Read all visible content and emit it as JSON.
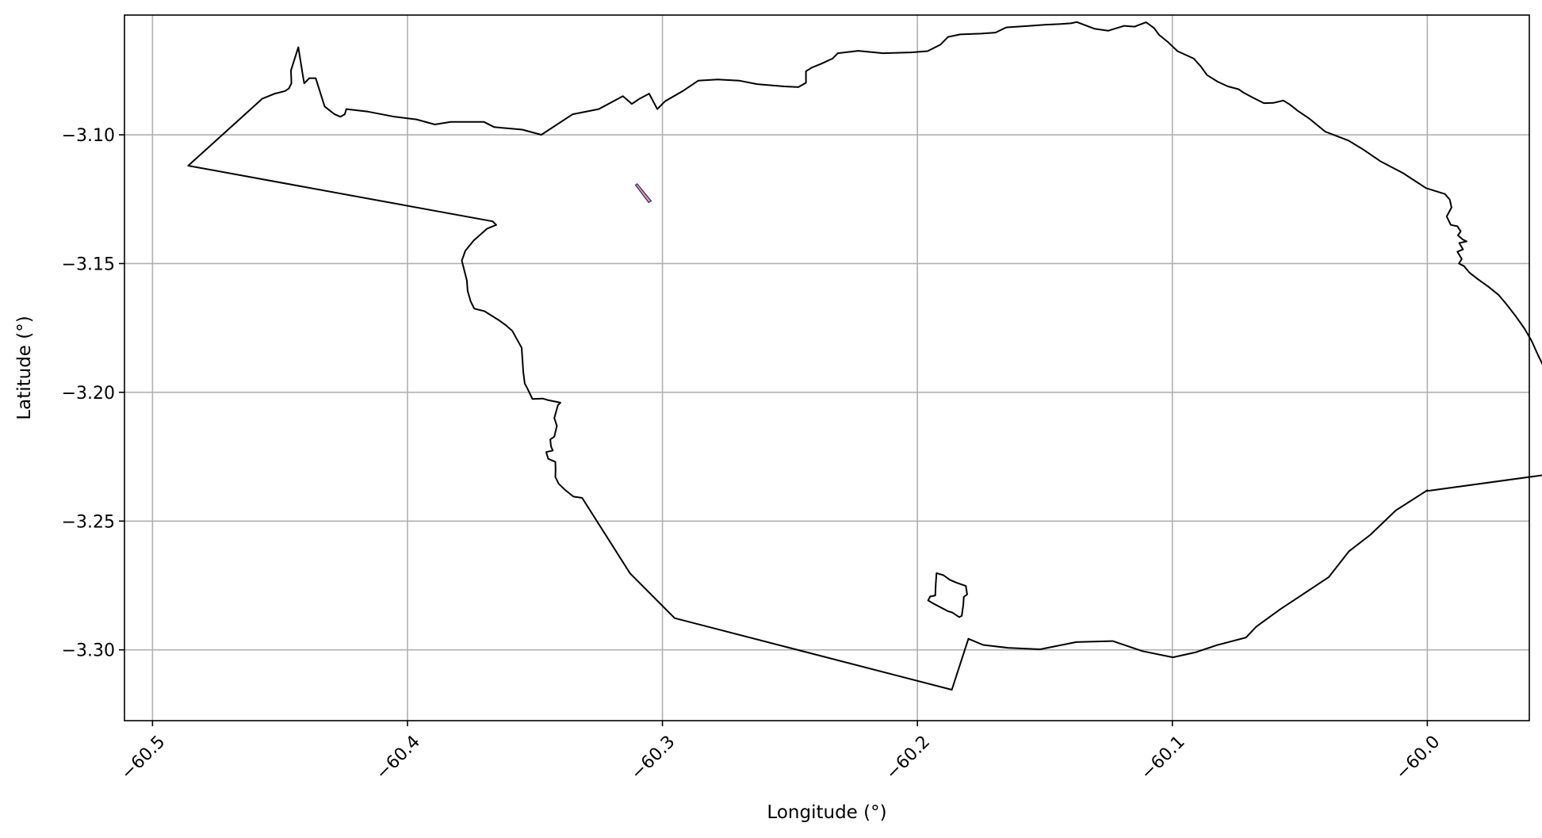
{
  "chart_data": {
    "type": "map",
    "title": "",
    "xlabel": "Longitude (°)",
    "ylabel": "Latitude (°)",
    "xlim": [
      -60.511,
      -59.96
    ],
    "ylim": [
      -3.3275,
      -3.0535
    ],
    "grid": true,
    "x_ticks": [
      {
        "value": -60.5,
        "label": "−60.5"
      },
      {
        "value": -60.4,
        "label": "−60.4"
      },
      {
        "value": -60.3,
        "label": "−60.3"
      },
      {
        "value": -60.2,
        "label": "−60.2"
      },
      {
        "value": -60.1,
        "label": "−60.1"
      },
      {
        "value": -60.0,
        "label": "−60.0"
      }
    ],
    "y_ticks": [
      {
        "value": -3.1,
        "label": "−3.10"
      },
      {
        "value": -3.15,
        "label": "−3.15"
      },
      {
        "value": -3.2,
        "label": "−3.20"
      },
      {
        "value": -3.25,
        "label": "−3.25"
      },
      {
        "value": -3.3,
        "label": "−3.30"
      }
    ],
    "colors": {
      "boundary": "#000000",
      "highlight_fill": "#f0a030",
      "highlight_edge": "#2020d0",
      "grid": "#b0b0b0"
    },
    "outline": [
      [
        -60.486,
        -3.112
      ],
      [
        -60.457,
        -3.086
      ],
      [
        -60.452,
        -3.084
      ],
      [
        -60.448,
        -3.083
      ],
      [
        -60.4465,
        -3.082
      ],
      [
        -60.4455,
        -3.08
      ],
      [
        -60.4457,
        -3.075
      ],
      [
        -60.4428,
        -3.066
      ],
      [
        -60.4412,
        -3.076
      ],
      [
        -60.4405,
        -3.08
      ],
      [
        -60.4385,
        -3.078
      ],
      [
        -60.436,
        -3.078
      ],
      [
        -60.4325,
        -3.089
      ],
      [
        -60.4286,
        -3.092
      ],
      [
        -60.4263,
        -3.093
      ],
      [
        -60.4246,
        -3.092
      ],
      [
        -60.424,
        -3.09
      ],
      [
        -60.4155,
        -3.091
      ],
      [
        -60.405,
        -3.093
      ],
      [
        -60.3965,
        -3.094
      ],
      [
        -60.3893,
        -3.096
      ],
      [
        -60.383,
        -3.095
      ],
      [
        -60.37,
        -3.095
      ],
      [
        -60.366,
        -3.097
      ],
      [
        -60.355,
        -3.098
      ],
      [
        -60.3475,
        -3.1
      ],
      [
        -60.3352,
        -3.092
      ],
      [
        -60.325,
        -3.09
      ],
      [
        -60.3155,
        -3.085
      ],
      [
        -60.312,
        -3.088
      ],
      [
        -60.309,
        -3.086
      ],
      [
        -60.3052,
        -3.084
      ],
      [
        -60.302,
        -3.09
      ],
      [
        -60.299,
        -3.087
      ],
      [
        -60.292,
        -3.083
      ],
      [
        -60.286,
        -3.079
      ],
      [
        -60.2784,
        -3.0785
      ],
      [
        -60.2697,
        -3.079
      ],
      [
        -60.2629,
        -3.0803
      ],
      [
        -60.2522,
        -3.0812
      ],
      [
        -60.2467,
        -3.0815
      ],
      [
        -60.2437,
        -3.0798
      ],
      [
        -60.2437,
        -3.0753
      ],
      [
        -60.2412,
        -3.0738
      ],
      [
        -60.2379,
        -3.0725
      ],
      [
        -60.2333,
        -3.0704
      ],
      [
        -60.2312,
        -3.0683
      ],
      [
        -60.2232,
        -3.0674
      ],
      [
        -60.2135,
        -3.0683
      ],
      [
        -60.2025,
        -3.068
      ],
      [
        -60.196,
        -3.0675
      ],
      [
        -60.191,
        -3.065
      ],
      [
        -60.188,
        -3.062
      ],
      [
        -60.1832,
        -3.061
      ],
      [
        -60.175,
        -3.0607
      ],
      [
        -60.1694,
        -3.0603
      ],
      [
        -60.1652,
        -3.0583
      ],
      [
        -60.156,
        -3.0577
      ],
      [
        -60.1502,
        -3.0573
      ],
      [
        -60.1443,
        -3.057
      ],
      [
        -60.1398,
        -3.0567
      ],
      [
        -60.1375,
        -3.0562
      ],
      [
        -60.1306,
        -3.0588
      ],
      [
        -60.1252,
        -3.0596
      ],
      [
        -60.1189,
        -3.0577
      ],
      [
        -60.1148,
        -3.058
      ],
      [
        -60.1103,
        -3.0563
      ],
      [
        -60.1071,
        -3.0586
      ],
      [
        -60.1052,
        -3.0612
      ],
      [
        -60.1017,
        -3.064
      ],
      [
        -60.098,
        -3.0675
      ],
      [
        -60.0916,
        -3.0704
      ],
      [
        -60.0888,
        -3.0735
      ],
      [
        -60.0864,
        -3.0768
      ],
      [
        -60.0822,
        -3.0794
      ],
      [
        -60.0782,
        -3.0812
      ],
      [
        -60.0741,
        -3.0823
      ],
      [
        -60.0718,
        -3.0838
      ],
      [
        -60.068,
        -3.0858
      ],
      [
        -60.0641,
        -3.0877
      ],
      [
        -60.0604,
        -3.0876
      ],
      [
        -60.0565,
        -3.0867
      ],
      [
        -60.054,
        -3.0882
      ],
      [
        -60.0508,
        -3.0907
      ],
      [
        -60.0464,
        -3.0936
      ],
      [
        -60.04,
        -3.0988
      ],
      [
        -60.031,
        -3.1022
      ],
      [
        -60.025,
        -3.1058
      ],
      [
        -60.0182,
        -3.1104
      ],
      [
        -60.0095,
        -3.1149
      ],
      [
        -60.0005,
        -3.1207
      ],
      [
        -59.9931,
        -3.123
      ],
      [
        -59.9912,
        -3.1252
      ],
      [
        -59.9905,
        -3.1282
      ],
      [
        -59.9924,
        -3.1317
      ],
      [
        -59.9908,
        -3.135
      ],
      [
        -59.9882,
        -3.1355
      ],
      [
        -59.9869,
        -3.1375
      ],
      [
        -59.988,
        -3.139
      ],
      [
        -59.9862,
        -3.1406
      ],
      [
        -59.9846,
        -3.1414
      ],
      [
        -59.9875,
        -3.142
      ],
      [
        -59.986,
        -3.1445
      ],
      [
        -59.9882,
        -3.1454
      ],
      [
        -59.9865,
        -3.1482
      ],
      [
        -59.9876,
        -3.15
      ],
      [
        -59.9856,
        -3.151
      ],
      [
        -59.9835,
        -3.1535
      ],
      [
        -59.98,
        -3.1562
      ],
      [
        -59.976,
        -3.159
      ],
      [
        -59.972,
        -3.1622
      ],
      [
        -59.9688,
        -3.166
      ],
      [
        -59.9655,
        -3.1702
      ],
      [
        -59.962,
        -3.1751
      ],
      [
        -59.9591,
        -3.18
      ],
      [
        -59.9567,
        -3.1853
      ],
      [
        -59.9542,
        -3.1904
      ],
      [
        -59.9521,
        -3.1953
      ],
      [
        -59.9503,
        -3.2003
      ],
      [
        -59.949,
        -3.2054
      ],
      [
        -59.948,
        -3.2105
      ],
      [
        -59.9472,
        -3.2155
      ],
      [
        -59.9467,
        -3.2207
      ],
      [
        -59.9464,
        -3.2258
      ],
      [
        -59.9463,
        -3.231
      ],
      [
        -60.0,
        -3.2383
      ],
      [
        -60.0,
        -3.238
      ],
      [
        -60.0124,
        -3.2459
      ],
      [
        -60.0223,
        -3.2553
      ],
      [
        -60.0307,
        -3.2617
      ],
      [
        -60.0386,
        -3.2717
      ],
      [
        -60.0491,
        -3.2786
      ],
      [
        -60.0578,
        -3.2843
      ],
      [
        -60.0671,
        -3.291
      ],
      [
        -60.0711,
        -3.2952
      ],
      [
        -60.0826,
        -3.2982
      ],
      [
        -60.0907,
        -3.3009
      ],
      [
        -60.0998,
        -3.3029
      ],
      [
        -60.1117,
        -3.3005
      ],
      [
        -60.1234,
        -3.2966
      ],
      [
        -60.1377,
        -3.297
      ],
      [
        -60.1519,
        -3.2998
      ],
      [
        -60.1645,
        -3.2992
      ],
      [
        -60.1742,
        -3.2981
      ],
      [
        -60.18,
        -3.2957
      ],
      [
        -60.1865,
        -3.3155
      ],
      [
        -60.2952,
        -3.2877
      ],
      [
        -60.3127,
        -3.2703
      ],
      [
        -60.3315,
        -3.241
      ],
      [
        -60.3349,
        -3.2405
      ],
      [
        -60.3383,
        -3.2378
      ],
      [
        -60.3407,
        -3.2355
      ],
      [
        -60.342,
        -3.2329
      ],
      [
        -60.3419,
        -3.23
      ],
      [
        -60.342,
        -3.227
      ],
      [
        -60.3448,
        -3.2258
      ],
      [
        -60.3456,
        -3.2232
      ],
      [
        -60.343,
        -3.2226
      ],
      [
        -60.3437,
        -3.221
      ],
      [
        -60.344,
        -3.2183
      ],
      [
        -60.3424,
        -3.2172
      ],
      [
        -60.3414,
        -3.213
      ],
      [
        -60.3424,
        -3.21
      ],
      [
        -60.341,
        -3.205
      ],
      [
        -60.34,
        -3.204
      ],
      [
        -60.345,
        -3.203
      ],
      [
        -60.347,
        -3.2024
      ],
      [
        -60.351,
        -3.2026
      ],
      [
        -60.353,
        -3.1984
      ],
      [
        -60.354,
        -3.1966
      ],
      [
        -60.3546,
        -3.192
      ],
      [
        -60.3552,
        -3.1827
      ],
      [
        -60.3589,
        -3.1761
      ],
      [
        -60.3616,
        -3.1738
      ],
      [
        -60.3643,
        -3.1719
      ],
      [
        -60.3698,
        -3.1685
      ],
      [
        -60.3738,
        -3.1675
      ],
      [
        -60.3752,
        -3.1647
      ],
      [
        -60.3764,
        -3.1607
      ],
      [
        -60.3767,
        -3.1566
      ],
      [
        -60.3787,
        -3.1488
      ],
      [
        -60.3773,
        -3.145
      ],
      [
        -60.374,
        -3.141
      ],
      [
        -60.3687,
        -3.1364
      ],
      [
        -60.3652,
        -3.135
      ],
      [
        -60.3666,
        -3.1336
      ],
      [
        -60.486,
        -3.112
      ]
    ],
    "inner_polygons": [
      {
        "name": "inner-island",
        "points": [
          [
            -60.1925,
            -3.2702
          ],
          [
            -60.1898,
            -3.271
          ],
          [
            -60.1873,
            -3.2728
          ],
          [
            -60.1845,
            -3.274
          ],
          [
            -60.181,
            -3.2752
          ],
          [
            -60.1805,
            -3.2785
          ],
          [
            -60.1818,
            -3.2794
          ],
          [
            -60.182,
            -3.2824
          ],
          [
            -60.1826,
            -3.2868
          ],
          [
            -60.1836,
            -3.2873
          ],
          [
            -60.1863,
            -3.2855
          ],
          [
            -60.188,
            -3.285
          ],
          [
            -60.1918,
            -3.283
          ],
          [
            -60.1941,
            -3.2818
          ],
          [
            -60.1958,
            -3.2808
          ],
          [
            -60.195,
            -3.2793
          ],
          [
            -60.193,
            -3.2789
          ],
          [
            -60.1928,
            -3.2745
          ],
          [
            -60.1925,
            -3.2702
          ]
        ]
      }
    ],
    "highlight_polygon": {
      "name": "highlighted-parcel",
      "points": [
        [
          -60.3099,
          -3.119
        ],
        [
          -60.3106,
          -3.1195
        ],
        [
          -60.3054,
          -3.1263
        ],
        [
          -60.3044,
          -3.1257
        ],
        [
          -60.3099,
          -3.119
        ]
      ]
    }
  }
}
